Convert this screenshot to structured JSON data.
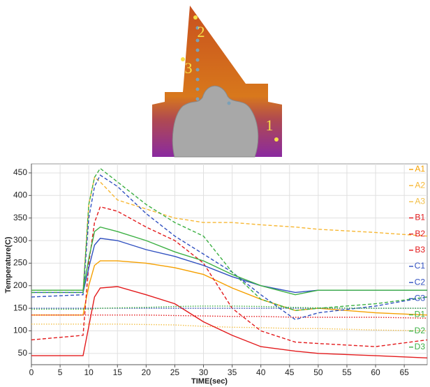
{
  "figure_labels": [
    "2",
    "3",
    "1"
  ],
  "chart_data": {
    "type": "line",
    "xlabel": "TIME(sec)",
    "ylabel": "Temperature(C)",
    "x": [
      0,
      9,
      10,
      11,
      12,
      15,
      20,
      25,
      30,
      35,
      40,
      46,
      50,
      60,
      69
    ],
    "xlim": [
      0,
      69
    ],
    "xticks": [
      0,
      5,
      10,
      15,
      20,
      25,
      30,
      35,
      40,
      45,
      50,
      55,
      60,
      65
    ],
    "ylim": [
      25,
      470
    ],
    "yticks": [
      50,
      100,
      150,
      200,
      250,
      300,
      350,
      400,
      450
    ],
    "grid": true,
    "legend": "right",
    "series": [
      {
        "name": "A1",
        "color": "#f5a000",
        "dash": "solid",
        "values": [
          135,
          135,
          200,
          245,
          255,
          255,
          250,
          240,
          225,
          195,
          170,
          145,
          150,
          140,
          135
        ]
      },
      {
        "name": "A2",
        "color": "#f7b733",
        "dash": "dashed",
        "values": [
          190,
          190,
          380,
          440,
          430,
          390,
          370,
          350,
          340,
          340,
          335,
          330,
          325,
          318,
          310
        ]
      },
      {
        "name": "A3",
        "color": "#f2c04a",
        "dash": "dotted",
        "values": [
          115,
          115,
          115,
          115,
          115,
          115,
          114,
          113,
          110,
          108,
          107,
          105,
          105,
          102,
          100
        ]
      },
      {
        "name": "B1",
        "color": "#e31a1c",
        "dash": "solid",
        "values": [
          45,
          45,
          110,
          175,
          195,
          198,
          180,
          160,
          120,
          90,
          65,
          55,
          50,
          45,
          40
        ]
      },
      {
        "name": "B2",
        "color": "#e31a1c",
        "dash": "dashed",
        "values": [
          80,
          90,
          250,
          340,
          375,
          365,
          330,
          300,
          250,
          150,
          100,
          75,
          72,
          65,
          80
        ]
      },
      {
        "name": "B3",
        "color": "#e31a1c",
        "dash": "dotted",
        "values": [
          135,
          135,
          135,
          135,
          135,
          135,
          135,
          134,
          133,
          132,
          132,
          130,
          130,
          130,
          128
        ]
      },
      {
        "name": "C1",
        "color": "#3050c0",
        "dash": "solid",
        "values": [
          185,
          185,
          240,
          290,
          305,
          300,
          280,
          265,
          245,
          220,
          200,
          185,
          190,
          190,
          190
        ]
      },
      {
        "name": "C2",
        "color": "#3050c0",
        "dash": "dashed",
        "values": [
          175,
          180,
          350,
          420,
          445,
          420,
          360,
          310,
          270,
          230,
          180,
          125,
          140,
          155,
          175
        ]
      },
      {
        "name": "C3",
        "color": "#3050c0",
        "dash": "dotted",
        "values": [
          150,
          150,
          150,
          150,
          150,
          150,
          150,
          150,
          150,
          150,
          150,
          150,
          150,
          150,
          150
        ]
      },
      {
        "name": "D1",
        "color": "#3cb043",
        "dash": "solid",
        "values": [
          190,
          190,
          260,
          320,
          330,
          320,
          300,
          275,
          255,
          225,
          200,
          180,
          190,
          190,
          190
        ]
      },
      {
        "name": "D2",
        "color": "#3cb043",
        "dash": "dashed",
        "values": [
          185,
          185,
          380,
          440,
          460,
          430,
          380,
          340,
          310,
          230,
          170,
          145,
          150,
          160,
          175
        ]
      },
      {
        "name": "D3",
        "color": "#3cb043",
        "dash": "dotted",
        "values": [
          148,
          148,
          148,
          149,
          150,
          151,
          152,
          154,
          155,
          155,
          154,
          152,
          151,
          150,
          150
        ]
      }
    ]
  }
}
